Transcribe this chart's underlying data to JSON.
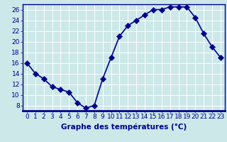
{
  "x": [
    0,
    1,
    2,
    3,
    4,
    5,
    6,
    7,
    8,
    9,
    10,
    11,
    12,
    13,
    14,
    15,
    16,
    17,
    18,
    19,
    20,
    21,
    22,
    23
  ],
  "y": [
    16,
    14,
    13,
    11.5,
    11,
    10.5,
    8.5,
    7.5,
    8,
    13,
    17,
    21,
    23,
    24,
    25,
    26,
    26,
    26.5,
    26.5,
    26.5,
    24.5,
    21.5,
    19,
    17
  ],
  "xlabel": "Graphe des températures (°C)",
  "xlim": [
    -0.5,
    23.5
  ],
  "ylim": [
    7,
    27
  ],
  "yticks": [
    8,
    10,
    12,
    14,
    16,
    18,
    20,
    22,
    24,
    26
  ],
  "xticks": [
    0,
    1,
    2,
    3,
    4,
    5,
    6,
    7,
    8,
    9,
    10,
    11,
    12,
    13,
    14,
    15,
    16,
    17,
    18,
    19,
    20,
    21,
    22,
    23
  ],
  "line_color": "#00008b",
  "marker_color": "#00008b",
  "bg_color": "#cce8e8",
  "grid_color": "#b0d0d0",
  "axis_bg": "#cce8e8",
  "bottom_bar_color": "#00008b",
  "xlabel_fontsize": 7.5,
  "tick_fontsize": 6.5,
  "marker_size": 4,
  "line_width": 1.2
}
